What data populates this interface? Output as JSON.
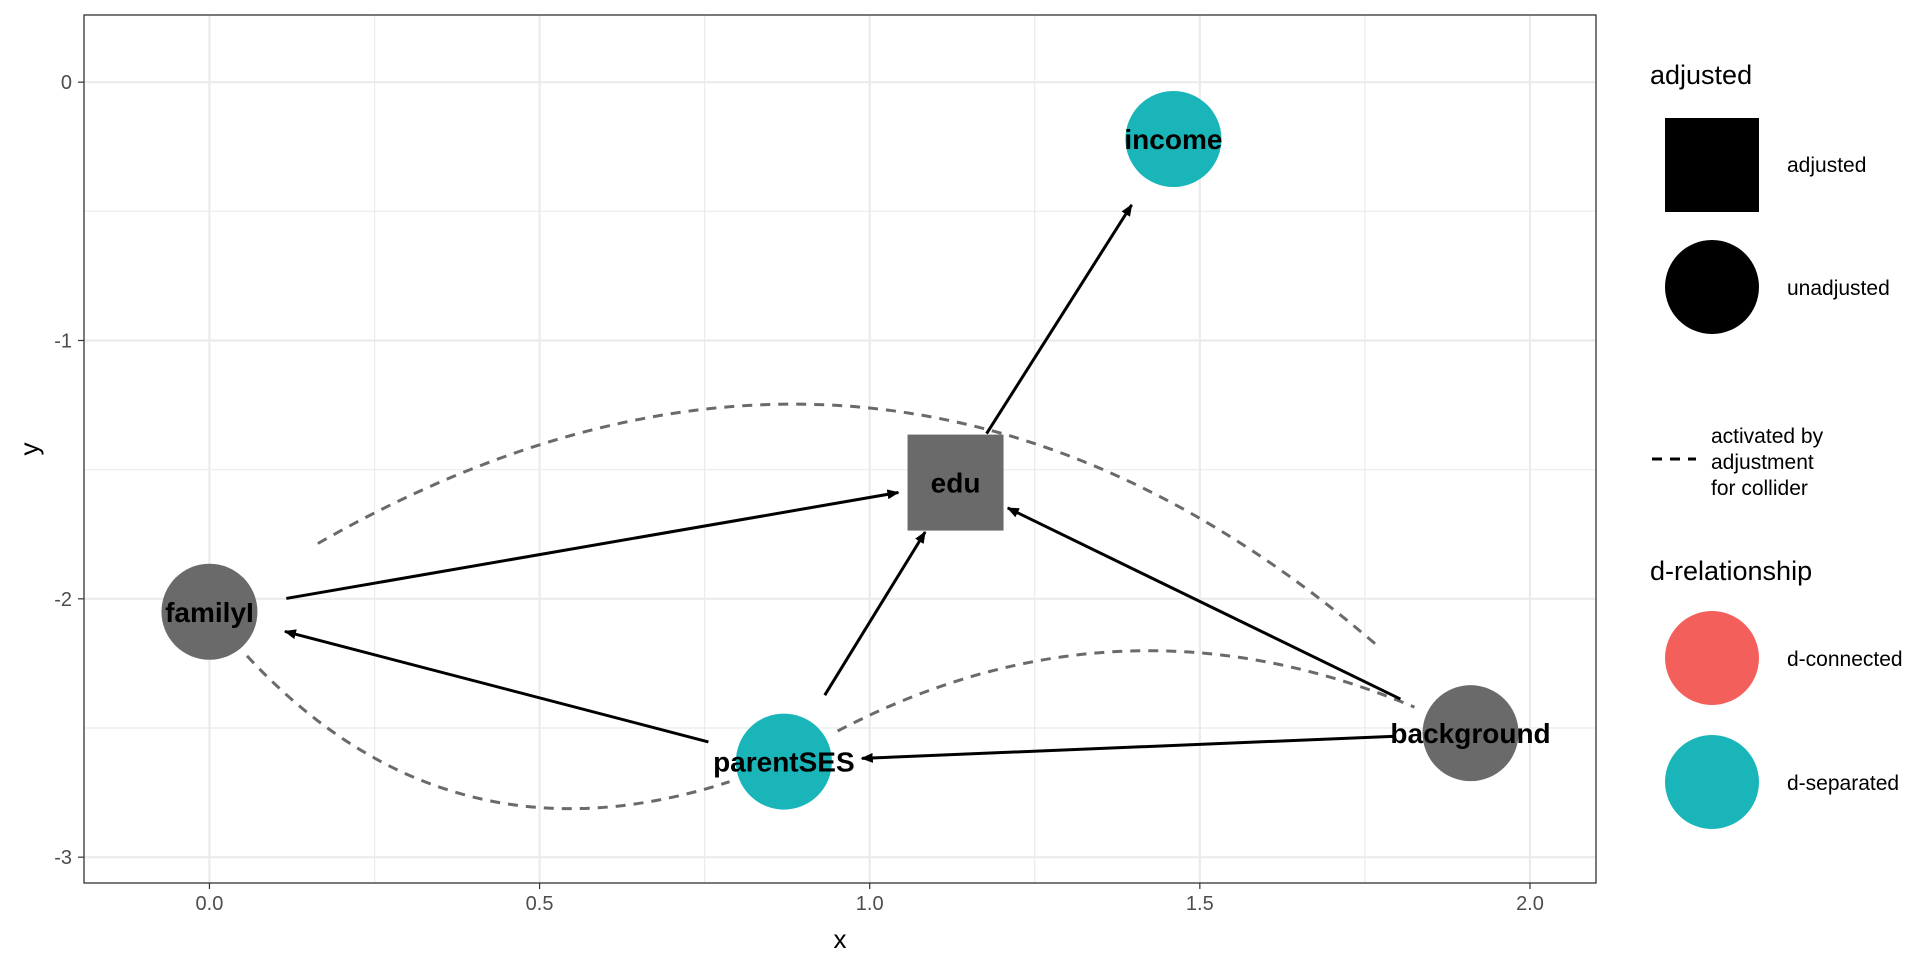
{
  "chart_data": {
    "type": "scatter",
    "title": "",
    "xlabel": "x",
    "ylabel": "y",
    "xlim": [
      -0.19,
      2.1
    ],
    "ylim": [
      -3.1,
      0.26
    ],
    "x_ticks": [
      0.0,
      0.5,
      1.0,
      1.5,
      2.0
    ],
    "x_tick_labels": [
      "0.0",
      "0.5",
      "1.0",
      "1.5",
      "2.0"
    ],
    "y_ticks": [
      0,
      -1,
      -2,
      -3
    ],
    "y_tick_labels": [
      "0",
      "-1",
      "-2",
      "-3"
    ],
    "grid": true,
    "legend_placement": "right",
    "nodes": [
      {
        "name": "income",
        "x": 1.46,
        "y": -0.22,
        "adjusted": false,
        "d_relationship": "d-separated"
      },
      {
        "name": "edu",
        "x": 1.13,
        "y": -1.55,
        "adjusted": true,
        "d_relationship": null
      },
      {
        "name": "familyI",
        "x": 0.0,
        "y": -2.05,
        "adjusted": false,
        "d_relationship": null
      },
      {
        "name": "parentSES",
        "x": 0.87,
        "y": -2.63,
        "adjusted": false,
        "d_relationship": "d-separated"
      },
      {
        "name": "background",
        "x": 1.91,
        "y": -2.52,
        "adjusted": false,
        "d_relationship": null
      }
    ],
    "edges": [
      {
        "from": "familyI",
        "to": "edu",
        "type": "directed"
      },
      {
        "from": "edu",
        "to": "income",
        "type": "directed"
      },
      {
        "from": "parentSES",
        "to": "familyI",
        "type": "directed"
      },
      {
        "from": "parentSES",
        "to": "edu",
        "type": "directed"
      },
      {
        "from": "background",
        "to": "edu",
        "type": "directed"
      },
      {
        "from": "background",
        "to": "parentSES",
        "type": "directed"
      },
      {
        "from": "familyI",
        "to": "background",
        "type": "collider",
        "bend": 0.42
      },
      {
        "from": "familyI",
        "to": "parentSES",
        "type": "collider",
        "bend": 0.38
      },
      {
        "from": "parentSES",
        "to": "background",
        "type": "collider",
        "bend": 0.28
      }
    ],
    "legends": [
      {
        "title": "adjusted",
        "entries": [
          {
            "label": "adjusted",
            "shape": "square"
          },
          {
            "label": "unadjusted",
            "shape": "circle"
          }
        ]
      },
      {
        "title": "",
        "entries": [
          {
            "label_lines": [
              "activated by",
              "adjustment",
              "for collider"
            ],
            "shape": "dashed-line"
          }
        ]
      },
      {
        "title": "d-relationship",
        "entries": [
          {
            "label": "d-connected",
            "color": "#F8766D"
          },
          {
            "label": "d-separated",
            "color": "#00BFC4"
          }
        ]
      }
    ]
  },
  "colors": {
    "d_separated": "#19B5B9",
    "d_connected": "#F3605C",
    "no_status": "#6a6a6a",
    "grid": "#ebebeb",
    "dashed_edge": "#6a6a6a"
  }
}
